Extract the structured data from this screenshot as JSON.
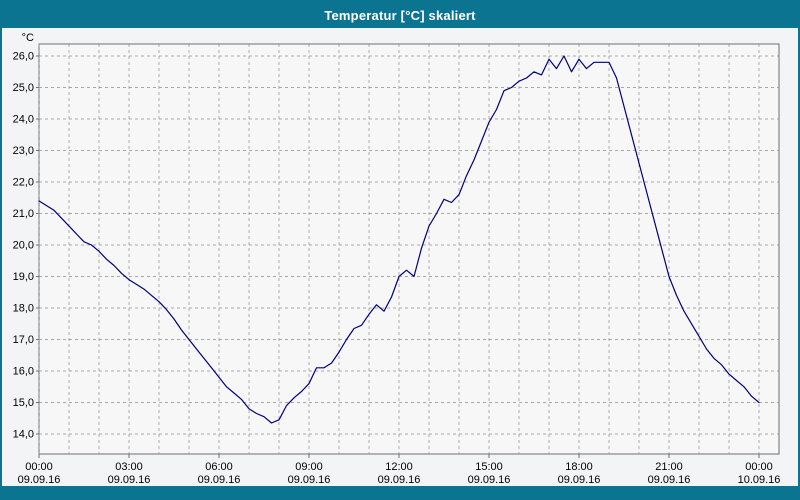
{
  "window": {
    "title": "Temperatur [°C] skaliert"
  },
  "colors": {
    "titlebar": "#0b7490",
    "border": "#0b7490",
    "outer_bg": "#f2f4f6",
    "plot_bg": "#f7f7f7",
    "grid": "#8f8f8f",
    "frame": "#6f6f6f",
    "line": "#000080",
    "text": "#000000"
  },
  "chart_data": {
    "type": "line",
    "title": "Temperatur [°C] skaliert",
    "ylabel": "°C",
    "ylim": [
      14,
      26
    ],
    "y_tick_labels": [
      "26,0",
      "25,0",
      "24,0",
      "23,0",
      "22,0",
      "21,0",
      "20,0",
      "19,0",
      "18,0",
      "17,0",
      "16,0",
      "15,0",
      "14,0"
    ],
    "x_hours_range": [
      0,
      24
    ],
    "x_tick_hours": [
      0,
      3,
      6,
      9,
      12,
      15,
      18,
      21,
      24
    ],
    "x_tick_times": [
      "00:00",
      "03:00",
      "06:00",
      "09:00",
      "12:00",
      "15:00",
      "18:00",
      "21:00",
      "00:00"
    ],
    "x_tick_dates": [
      "09.09.16",
      "09.09.16",
      "09.09.16",
      "09.09.16",
      "09.09.16",
      "09.09.16",
      "09.09.16",
      "09.09.16",
      "10.09.16"
    ],
    "grid": "dashed, hourly vertical, 1.0 °C horizontal",
    "legend_position": "none",
    "sample_interval_hours": 0.25,
    "series": [
      {
        "name": "Temperatur",
        "unit": "°C",
        "values": [
          21.4,
          21.25,
          21.1,
          20.85,
          20.6,
          20.35,
          20.1,
          20.0,
          19.8,
          19.55,
          19.35,
          19.1,
          18.9,
          18.75,
          18.6,
          18.4,
          18.2,
          17.95,
          17.65,
          17.3,
          17.0,
          16.7,
          16.4,
          16.1,
          15.8,
          15.5,
          15.3,
          15.1,
          14.8,
          14.65,
          14.55,
          14.35,
          14.45,
          14.9,
          15.15,
          15.35,
          15.6,
          16.1,
          16.1,
          16.25,
          16.6,
          17.0,
          17.35,
          17.45,
          17.8,
          18.1,
          17.9,
          18.35,
          19.0,
          19.2,
          19.0,
          19.9,
          20.6,
          21.0,
          21.45,
          21.35,
          21.6,
          22.2,
          22.7,
          23.3,
          23.9,
          24.3,
          24.9,
          25.0,
          25.2,
          25.3,
          25.5,
          25.4,
          25.9,
          25.6,
          26.0,
          25.5,
          25.9,
          25.6,
          25.8,
          25.8,
          25.8,
          25.3,
          24.4,
          23.5,
          22.6,
          21.7,
          20.8,
          19.9,
          19.0,
          18.4,
          17.9,
          17.5,
          17.1,
          16.7,
          16.4,
          16.2,
          15.9,
          15.7,
          15.5,
          15.2,
          15.0
        ]
      }
    ]
  }
}
